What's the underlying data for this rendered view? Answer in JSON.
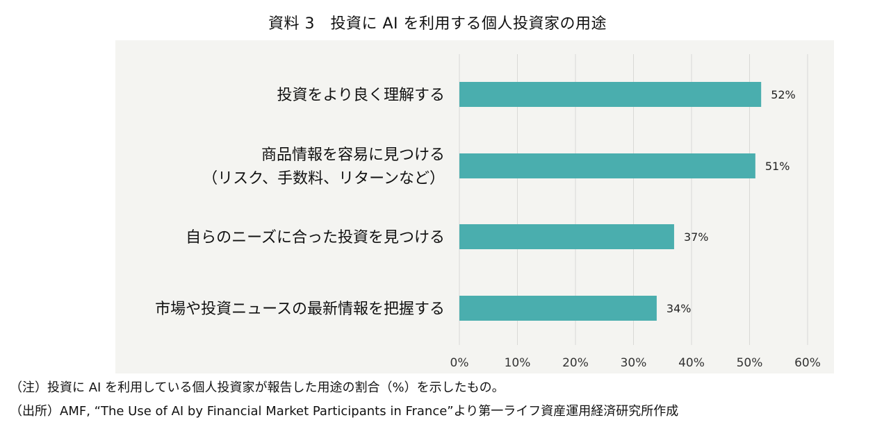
{
  "title": "資料 3　投資に AI を利用する個人投資家の用途",
  "chart_data": {
    "type": "bar",
    "orientation": "horizontal",
    "categories": [
      [
        "投資をより良く理解する"
      ],
      [
        "商品情報を容易に見つける",
        "（リスク、手数料、リターンなど）"
      ],
      [
        "自らのニーズに合った投資を見つける"
      ],
      [
        "市場や投資ニュースの最新情報を把握する"
      ]
    ],
    "values": [
      52,
      51,
      37,
      34
    ],
    "value_labels": [
      "52%",
      "51%",
      "37%",
      "34%"
    ],
    "xlim": [
      0,
      60
    ],
    "xticks": [
      0,
      10,
      20,
      30,
      40,
      50,
      60
    ],
    "xtick_labels": [
      "0%",
      "10%",
      "20%",
      "30%",
      "40%",
      "50%",
      "60%"
    ],
    "grid": "vertical",
    "bar_color": "#4aaeae",
    "panel_color": "#f4f4f1",
    "legend": "none"
  },
  "notes": {
    "note": "（注）投資に AI を利用している個人投資家が報告した用途の割合（%）を示したもの。",
    "source": "（出所）AMF, “The Use of AI by Financial Market Participants in France”より第一ライフ資産運用経済研究所作成"
  }
}
